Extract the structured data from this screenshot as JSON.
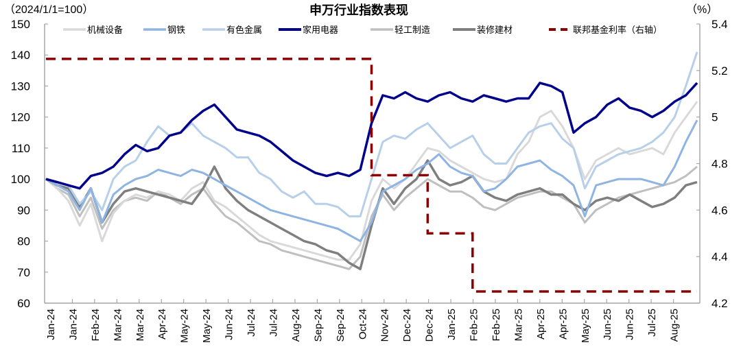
{
  "chart_data": {
    "type": "line",
    "title": "申万行业指数表现",
    "left_axis": {
      "unit_label": "（2024/1/1=100）",
      "ticks": [
        150,
        140,
        130,
        120,
        110,
        100,
        90,
        80,
        70,
        60
      ],
      "ylim": [
        60,
        150
      ]
    },
    "right_axis": {
      "unit_label": "（%）",
      "ticks": [
        "5.4",
        "5.2",
        "5",
        "4.8",
        "4.6",
        "4.4",
        "4.2"
      ],
      "ylim": [
        4.2,
        5.4
      ]
    },
    "x_tick_labels": [
      "Jan-24",
      "Jan-24",
      "Feb-24",
      "Mar-24",
      "Mar-24",
      "Apr-24",
      "May-24",
      "May-24",
      "Jun-24",
      "Jul-24",
      "Jul-24",
      "Aug-24",
      "Sep-24",
      "Sep-24",
      "Oct-24",
      "Nov-24",
      "Dec-24",
      "Dec-24",
      "Jan-25",
      "Feb-25",
      "Feb-25",
      "Mar-25",
      "Apr-25",
      "Apr-25",
      "May-25",
      "Jun-25",
      "Jun-25",
      "Jul-25",
      "Aug-25"
    ],
    "legend_position": "top",
    "grid": false,
    "x": [
      0,
      1,
      2,
      3,
      4,
      5,
      6,
      7,
      8,
      9,
      10,
      11,
      12,
      13,
      14,
      15,
      16,
      17,
      18,
      19,
      20,
      21,
      22,
      23,
      24,
      25,
      26,
      27,
      28,
      29,
      30,
      31,
      32,
      33,
      34,
      35,
      36,
      37,
      38,
      39,
      40,
      41,
      42,
      43,
      44,
      45,
      46,
      47,
      48,
      49,
      50,
      51,
      52,
      53,
      54,
      55,
      56,
      57,
      58
    ],
    "series": [
      {
        "name": "机械设备",
        "axis": "left",
        "color": "#d9d9d9",
        "width": 3,
        "values": [
          100,
          97,
          93,
          85,
          92,
          80,
          89,
          93,
          95,
          94,
          96,
          95,
          93,
          97,
          99,
          93,
          91,
          88,
          85,
          82,
          80,
          79,
          78,
          77,
          76,
          75,
          74,
          74,
          79,
          93,
          100,
          97,
          100,
          105,
          110,
          109,
          106,
          104,
          102,
          100,
          99,
          100,
          108,
          112,
          120,
          122,
          117,
          110,
          100,
          106,
          108,
          110,
          108,
          109,
          110,
          108,
          115,
          120,
          125
        ]
      },
      {
        "name": "钢铁",
        "axis": "left",
        "color": "#8eb4e3",
        "width": 3,
        "values": [
          100,
          98,
          96,
          90,
          97,
          86,
          95,
          98,
          100,
          101,
          103,
          102,
          101,
          103,
          102,
          100,
          98,
          96,
          94,
          92,
          90,
          89,
          88,
          87,
          86,
          85,
          84,
          82,
          80,
          86,
          96,
          98,
          100,
          103,
          105,
          108,
          104,
          102,
          101,
          96,
          97,
          100,
          104,
          105,
          106,
          103,
          101,
          98,
          88,
          98,
          99,
          100,
          100,
          100,
          99,
          98,
          104,
          112,
          119
        ]
      },
      {
        "name": "有色金属",
        "axis": "left",
        "color": "#b8cfe9",
        "width": 3,
        "values": [
          100,
          99,
          98,
          92,
          96,
          90,
          100,
          104,
          106,
          112,
          117,
          114,
          115,
          118,
          114,
          112,
          110,
          107,
          107,
          102,
          100,
          96,
          94,
          96,
          92,
          92,
          91,
          88,
          88,
          100,
          112,
          114,
          113,
          116,
          118,
          114,
          110,
          112,
          114,
          108,
          105,
          105,
          110,
          115,
          117,
          118,
          113,
          110,
          97,
          104,
          106,
          108,
          109,
          110,
          112,
          115,
          120,
          130,
          141
        ]
      },
      {
        "name": "家用电器",
        "axis": "left",
        "color": "#00008b",
        "width": 3.5,
        "values": [
          100,
          99,
          98,
          97,
          101,
          102,
          104,
          108,
          111,
          109,
          110,
          114,
          115,
          119,
          122,
          124,
          120,
          116,
          115,
          114,
          112,
          109,
          106,
          104,
          102,
          101,
          102,
          101,
          103,
          118,
          127,
          126,
          128,
          126,
          125,
          127,
          128,
          126,
          125,
          127,
          126,
          125,
          126,
          126,
          131,
          130,
          128,
          115,
          118,
          120,
          124,
          126,
          123,
          122,
          120,
          122,
          125,
          127,
          131
        ]
      },
      {
        "name": "轻工制造",
        "axis": "left",
        "color": "#bfbfbf",
        "width": 3,
        "values": [
          100,
          97,
          95,
          88,
          94,
          84,
          90,
          93,
          94,
          93,
          96,
          94,
          92,
          95,
          97,
          92,
          88,
          86,
          83,
          80,
          79,
          77,
          76,
          75,
          74,
          73,
          72,
          71,
          75,
          88,
          95,
          90,
          94,
          97,
          100,
          98,
          96,
          96,
          94,
          91,
          90,
          92,
          94,
          95,
          96,
          96,
          94,
          92,
          86,
          90,
          92,
          94,
          95,
          96,
          97,
          98,
          99,
          101,
          104
        ]
      },
      {
        "name": "装修建材",
        "axis": "left",
        "color": "#7f7f7f",
        "width": 3.5,
        "values": [
          100,
          98,
          97,
          91,
          97,
          86,
          92,
          96,
          97,
          96,
          95,
          94,
          93,
          92,
          97,
          104,
          97,
          93,
          90,
          88,
          86,
          84,
          82,
          80,
          79,
          77,
          76,
          73,
          71,
          85,
          97,
          92,
          97,
          100,
          106,
          100,
          98,
          99,
          101,
          96,
          94,
          93,
          95,
          96,
          97,
          95,
          95,
          92,
          90,
          93,
          94,
          93,
          95,
          93,
          91,
          92,
          94,
          98,
          99
        ]
      },
      {
        "name": "联邦基金利率（右轴）",
        "axis": "right",
        "color": "#8b0000",
        "width": 3.5,
        "dash": "14,9",
        "step": true,
        "values": [
          5.25,
          5.25,
          5.25,
          5.25,
          5.25,
          5.25,
          5.25,
          5.25,
          5.25,
          5.25,
          5.25,
          5.25,
          5.25,
          5.25,
          5.25,
          5.25,
          5.25,
          5.25,
          5.25,
          5.25,
          5.25,
          5.25,
          5.25,
          5.25,
          5.25,
          5.25,
          5.25,
          5.25,
          5.25,
          4.75,
          4.75,
          4.75,
          4.75,
          4.75,
          4.5,
          4.5,
          4.5,
          4.5,
          4.25,
          4.25,
          4.25,
          4.25,
          4.25,
          4.25,
          4.25,
          4.25,
          4.25,
          4.25,
          4.25,
          4.25,
          4.25,
          4.25,
          4.25,
          4.25,
          4.25,
          4.25,
          4.25,
          4.25,
          4.25
        ]
      }
    ]
  }
}
